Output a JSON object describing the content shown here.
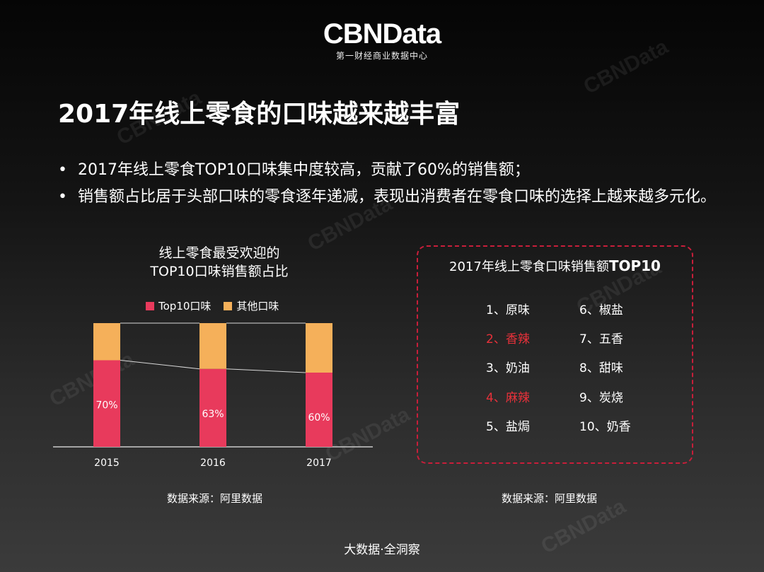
{
  "logo": {
    "main": "CBNData",
    "sub": "第一财经商业数据中心"
  },
  "title": "2017年线上零食的口味越来越丰富",
  "bullets": [
    "2017年线上零食TOP10口味集中度较高，贡献了60%的销售额；",
    "销售额占比居于头部口味的零食逐年递减，表现出消费者在零食口味的选择上越来越多元化。"
  ],
  "bullet_mark": "•",
  "chart_title_lines": [
    "线上零食最受欢迎的",
    "TOP10口味销售额占比"
  ],
  "colors": {
    "top10": "#e83a5c",
    "other": "#f5b05a",
    "highlight": "#e8313a",
    "border": "#c81e3a"
  },
  "chart_data": {
    "type": "bar",
    "stacked": true,
    "categories": [
      "2015",
      "2016",
      "2017"
    ],
    "series": [
      {
        "name": "Top10口味",
        "values": [
          70,
          63,
          60
        ],
        "labels": [
          "70%",
          "63%",
          "60%"
        ]
      },
      {
        "name": "其他口味",
        "values": [
          30,
          37,
          40
        ]
      }
    ],
    "ylim": [
      0,
      100
    ],
    "legend": "top"
  },
  "source_left": "数据来源：阿里数据",
  "top10_box": {
    "title_prefix": "2017年线上零食口味销售额",
    "title_bold": "TOP10",
    "items": [
      {
        "label": "1、原味",
        "highlight": false
      },
      {
        "label": "2、香辣",
        "highlight": true
      },
      {
        "label": "3、奶油",
        "highlight": false
      },
      {
        "label": "4、麻辣",
        "highlight": true
      },
      {
        "label": "5、盐焗",
        "highlight": false
      },
      {
        "label": "6、椒盐",
        "highlight": false
      },
      {
        "label": "7、五香",
        "highlight": false
      },
      {
        "label": "8、甜味",
        "highlight": false
      },
      {
        "label": "9、炭烧",
        "highlight": false
      },
      {
        "label": "10、奶香",
        "highlight": false
      }
    ]
  },
  "source_right": "数据来源：阿里数据",
  "footer": "大数据·全洞察"
}
